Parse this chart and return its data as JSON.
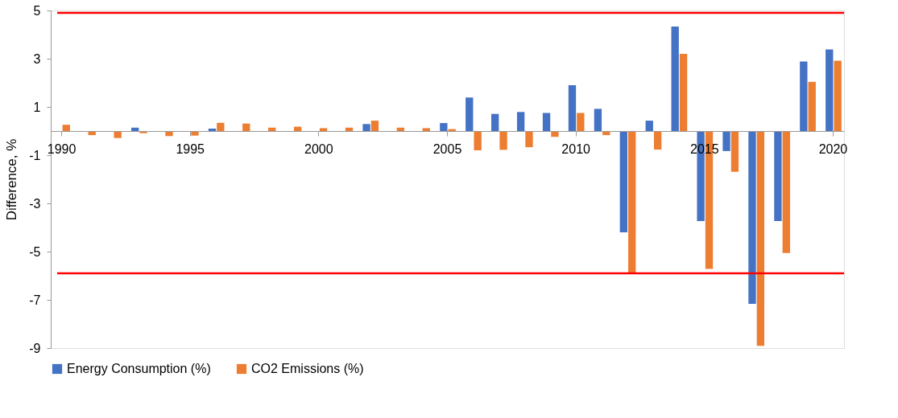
{
  "chart_data": {
    "type": "bar",
    "ylabel": "Difference, %",
    "categories": [
      "1990",
      null,
      null,
      null,
      null,
      "1995",
      null,
      null,
      null,
      null,
      "2000",
      null,
      null,
      null,
      null,
      "2005",
      null,
      null,
      null,
      null,
      "2010",
      null,
      null,
      null,
      null,
      "2015",
      null,
      null,
      null,
      null,
      "2020"
    ],
    "series": [
      {
        "name": "Energy Consumption (%)",
        "color": "#4472c4",
        "values": [
          0,
          0,
          0,
          0.14,
          0,
          0,
          0.1,
          0,
          0,
          0,
          0,
          0,
          0.29,
          0,
          0,
          0.33,
          1.39,
          0.71,
          0.79,
          0.75,
          1.9,
          0.92,
          -4.2,
          0.43,
          4.33,
          -3.73,
          -0.83,
          -7.17,
          -3.73,
          2.88,
          3.38
        ]
      },
      {
        "name": "CO2 Emissions (%)",
        "color": "#ed7d31",
        "values": [
          0.26,
          -0.17,
          -0.29,
          -0.09,
          -0.21,
          -0.19,
          0.34,
          0.31,
          0.14,
          0.18,
          0.12,
          0.14,
          0.43,
          0.14,
          0.12,
          0.08,
          -0.8,
          -0.78,
          -0.67,
          -0.24,
          0.75,
          -0.17,
          -5.9,
          -0.77,
          3.2,
          -5.72,
          -1.69,
          -8.91,
          -5.06,
          2.04,
          2.92
        ]
      }
    ],
    "ylim": [
      -9,
      5
    ],
    "yticks": [
      -9,
      -7,
      -5,
      -3,
      -1,
      1,
      3,
      5
    ],
    "ref_lines": [
      {
        "axis": "y",
        "value": 4.9,
        "color": "#ff0000"
      },
      {
        "axis": "y",
        "value": -5.9,
        "color": "#ff0000"
      }
    ],
    "grid": false,
    "legend": "bottom"
  }
}
